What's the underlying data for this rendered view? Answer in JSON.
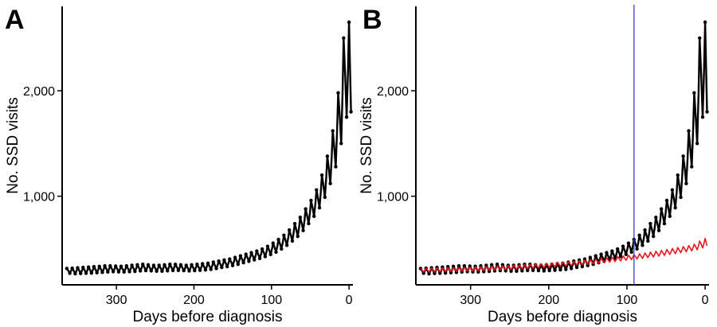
{
  "chart_data": [
    {
      "type": "line",
      "panel_label": "A",
      "xlabel": "Days before diagnosis",
      "ylabel": "No. SSD visits",
      "xlim": [
        370,
        -5
      ],
      "ylim": [
        160,
        2800
      ],
      "x_reversed": true,
      "xticks": [
        300,
        200,
        100,
        0
      ],
      "xtick_labels": [
        "300",
        "200",
        "100",
        "0"
      ],
      "yticks": [
        1000,
        2000
      ],
      "ytick_labels": [
        "1,000",
        "2,000"
      ],
      "grid": false,
      "series": [
        {
          "color": "#000000",
          "marker": "point",
          "x": [
            364,
            357,
            350,
            343,
            336,
            329,
            322,
            315,
            308,
            301,
            294,
            287,
            280,
            273,
            266,
            259,
            252,
            245,
            238,
            231,
            224,
            217,
            210,
            203,
            196,
            189,
            182,
            175,
            168,
            161,
            154,
            147,
            140,
            133,
            126,
            119,
            112,
            105,
            98,
            91,
            84,
            77,
            70,
            63,
            56,
            49,
            42,
            35,
            28,
            21,
            14,
            7,
            0
          ],
          "high": [
            315,
            318,
            322,
            325,
            328,
            332,
            335,
            340,
            340,
            338,
            336,
            340,
            345,
            350,
            355,
            350,
            345,
            345,
            350,
            355,
            355,
            350,
            345,
            350,
            355,
            360,
            365,
            375,
            385,
            395,
            405,
            420,
            435,
            450,
            465,
            480,
            500,
            525,
            555,
            590,
            630,
            680,
            740,
            800,
            880,
            960,
            1060,
            1200,
            1380,
            1620,
            1980,
            2500,
            2650
          ],
          "low": [
            270,
            265,
            268,
            270,
            272,
            275,
            278,
            282,
            285,
            283,
            282,
            285,
            288,
            292,
            295,
            293,
            290,
            290,
            293,
            296,
            297,
            295,
            292,
            295,
            298,
            302,
            307,
            315,
            325,
            333,
            343,
            355,
            370,
            383,
            397,
            410,
            428,
            448,
            470,
            500,
            535,
            575,
            620,
            675,
            740,
            810,
            890,
            990,
            1120,
            1280,
            1500,
            1750,
            1800
          ]
        }
      ]
    },
    {
      "type": "line",
      "panel_label": "B",
      "xlabel": "Days before diagnosis",
      "ylabel": "No. SSD visits",
      "xlim": [
        370,
        -5
      ],
      "ylim": [
        160,
        2800
      ],
      "x_reversed": true,
      "xticks": [
        300,
        200,
        100,
        0
      ],
      "xtick_labels": [
        "300",
        "200",
        "100",
        "0"
      ],
      "yticks": [
        1000,
        2000
      ],
      "ytick_labels": [
        "1,000",
        "2,000"
      ],
      "grid": false,
      "vline": {
        "x": 91,
        "color": "#3b3bdb"
      },
      "series": [
        {
          "color": "#000000",
          "marker": "point",
          "x": [
            364,
            357,
            350,
            343,
            336,
            329,
            322,
            315,
            308,
            301,
            294,
            287,
            280,
            273,
            266,
            259,
            252,
            245,
            238,
            231,
            224,
            217,
            210,
            203,
            196,
            189,
            182,
            175,
            168,
            161,
            154,
            147,
            140,
            133,
            126,
            119,
            112,
            105,
            98,
            91,
            84,
            77,
            70,
            63,
            56,
            49,
            42,
            35,
            28,
            21,
            14,
            7,
            0
          ],
          "high": [
            315,
            318,
            322,
            325,
            328,
            332,
            335,
            340,
            340,
            338,
            336,
            340,
            345,
            350,
            355,
            350,
            345,
            345,
            350,
            355,
            355,
            350,
            345,
            350,
            355,
            360,
            365,
            375,
            385,
            395,
            405,
            420,
            435,
            450,
            465,
            480,
            500,
            525,
            555,
            590,
            630,
            680,
            740,
            800,
            880,
            960,
            1060,
            1200,
            1380,
            1620,
            1980,
            2500,
            2650
          ],
          "low": [
            270,
            265,
            268,
            270,
            272,
            275,
            278,
            282,
            285,
            283,
            282,
            285,
            288,
            292,
            295,
            293,
            290,
            290,
            293,
            296,
            297,
            295,
            292,
            295,
            298,
            302,
            307,
            315,
            325,
            333,
            343,
            355,
            370,
            383,
            397,
            410,
            428,
            448,
            470,
            500,
            535,
            575,
            620,
            675,
            740,
            810,
            890,
            990,
            1120,
            1280,
            1500,
            1750,
            1800
          ]
        },
        {
          "color": "#e8141c",
          "marker": "none",
          "x": [
            364,
            357,
            350,
            343,
            336,
            329,
            322,
            315,
            308,
            301,
            294,
            287,
            280,
            273,
            266,
            259,
            252,
            245,
            238,
            231,
            224,
            217,
            210,
            203,
            196,
            189,
            182,
            175,
            168,
            161,
            154,
            147,
            140,
            133,
            126,
            119,
            112,
            105,
            98,
            91,
            84,
            77,
            70,
            63,
            56,
            49,
            42,
            35,
            28,
            21,
            14,
            7,
            0
          ],
          "high": [
            318,
            318,
            319,
            320,
            321,
            322,
            323,
            325,
            326,
            328,
            330,
            332,
            334,
            336,
            338,
            340,
            343,
            346,
            349,
            352,
            355,
            358,
            361,
            364,
            368,
            372,
            376,
            380,
            384,
            389,
            394,
            399,
            404,
            410,
            416,
            422,
            428,
            434,
            440,
            447,
            454,
            462,
            470,
            478,
            486,
            495,
            504,
            513,
            522,
            532,
            545,
            575,
            600
          ],
          "low": [
            282,
            282,
            283,
            284,
            285,
            286,
            287,
            288,
            289,
            291,
            293,
            295,
            297,
            299,
            301,
            303,
            305,
            308,
            311,
            314,
            317,
            320,
            323,
            326,
            330,
            334,
            338,
            342,
            346,
            350,
            355,
            360,
            365,
            370,
            375,
            381,
            387,
            393,
            399,
            405,
            411,
            418,
            425,
            432,
            440,
            448,
            456,
            465,
            474,
            483,
            493,
            510,
            530
          ]
        }
      ]
    }
  ]
}
